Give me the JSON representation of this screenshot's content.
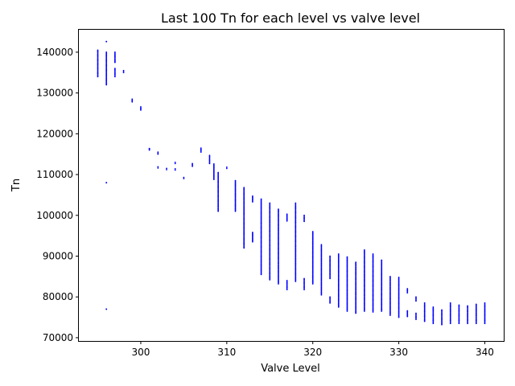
{
  "chart_data": {
    "type": "scatter",
    "title": "Last 100 Tn for each level vs valve level",
    "xlabel": "Valve Level",
    "ylabel": "Tn",
    "xlim": [
      292.8,
      342.2
    ],
    "ylim": [
      69200,
      145500
    ],
    "xticks": [
      300,
      310,
      320,
      330,
      340
    ],
    "yticks": [
      70000,
      80000,
      90000,
      100000,
      110000,
      120000,
      130000,
      140000
    ],
    "xtick_labels": [
      "300",
      "310",
      "320",
      "330",
      "340"
    ],
    "ytick_labels": [
      "70000",
      "80000",
      "90000",
      "100000",
      "110000",
      "120000",
      "130000",
      "140000"
    ],
    "grid": false,
    "marker_color": "#0000ff",
    "series": [
      {
        "ranges": [
          {
            "x": 295,
            "y_ranges": [
              [
                134000,
                140500
              ]
            ]
          },
          {
            "x": 296,
            "y_ranges": [
              [
                132000,
                140000
              ],
              [
                142600,
                142600
              ],
              [
                108000,
                108000
              ],
              [
                77000,
                77000
              ]
            ]
          },
          {
            "x": 297,
            "y_ranges": [
              [
                134000,
                136000
              ],
              [
                137500,
                140000
              ]
            ]
          },
          {
            "x": 298,
            "y_ranges": [
              [
                135000,
                135500
              ]
            ]
          },
          {
            "x": 299,
            "y_ranges": [
              [
                127800,
                128500
              ]
            ]
          },
          {
            "x": 300,
            "y_ranges": [
              [
                125800,
                126600
              ]
            ]
          },
          {
            "x": 301,
            "y_ranges": [
              [
                116000,
                116400
              ]
            ]
          },
          {
            "x": 302,
            "y_ranges": [
              [
                115000,
                115500
              ],
              [
                111600,
                111900
              ]
            ]
          },
          {
            "x": 303,
            "y_ranges": [
              [
                111200,
                111500
              ]
            ]
          },
          {
            "x": 304,
            "y_ranges": [
              [
                112700,
                113000
              ],
              [
                111100,
                111400
              ]
            ]
          },
          {
            "x": 305,
            "y_ranges": [
              [
                109000,
                109300
              ]
            ]
          },
          {
            "x": 306,
            "y_ranges": [
              [
                112000,
                112700
              ]
            ]
          },
          {
            "x": 307,
            "y_ranges": [
              [
                115500,
                116500
              ]
            ]
          },
          {
            "x": 308,
            "y_ranges": [
              [
                112700,
                114700
              ]
            ]
          },
          {
            "x": 308.5,
            "y_ranges": [
              [
                108800,
                112600
              ]
            ]
          },
          {
            "x": 309,
            "y_ranges": [
              [
                101000,
                110500
              ]
            ]
          },
          {
            "x": 310,
            "y_ranges": [
              [
                111500,
                111800
              ]
            ]
          },
          {
            "x": 311,
            "y_ranges": [
              [
                101000,
                108500
              ]
            ]
          },
          {
            "x": 312,
            "y_ranges": [
              [
                92000,
                106800
              ]
            ]
          },
          {
            "x": 313,
            "y_ranges": [
              [
                93500,
                95800
              ],
              [
                103300,
                104700
              ]
            ]
          },
          {
            "x": 314,
            "y_ranges": [
              [
                85500,
                104000
              ]
            ]
          },
          {
            "x": 315,
            "y_ranges": [
              [
                84200,
                103000
              ]
            ]
          },
          {
            "x": 316,
            "y_ranges": [
              [
                83200,
                101500
              ]
            ]
          },
          {
            "x": 317,
            "y_ranges": [
              [
                81800,
                84000
              ],
              [
                98600,
                100300
              ]
            ]
          },
          {
            "x": 318,
            "y_ranges": [
              [
                83800,
                103000
              ]
            ]
          },
          {
            "x": 319,
            "y_ranges": [
              [
                81800,
                84500
              ],
              [
                98500,
                100000
              ]
            ]
          },
          {
            "x": 320,
            "y_ranges": [
              [
                83200,
                96000
              ]
            ]
          },
          {
            "x": 321,
            "y_ranges": [
              [
                80500,
                92800
              ]
            ]
          },
          {
            "x": 322,
            "y_ranges": [
              [
                78500,
                80000
              ],
              [
                84500,
                90000
              ]
            ]
          },
          {
            "x": 323,
            "y_ranges": [
              [
                77500,
                90500
              ]
            ]
          },
          {
            "x": 324,
            "y_ranges": [
              [
                76500,
                89800
              ]
            ]
          },
          {
            "x": 325,
            "y_ranges": [
              [
                76000,
                88500
              ]
            ]
          },
          {
            "x": 326,
            "y_ranges": [
              [
                76500,
                91500
              ]
            ]
          },
          {
            "x": 327,
            "y_ranges": [
              [
                76300,
                90500
              ]
            ]
          },
          {
            "x": 328,
            "y_ranges": [
              [
                76500,
                89000
              ]
            ]
          },
          {
            "x": 329,
            "y_ranges": [
              [
                75500,
                85000
              ]
            ]
          },
          {
            "x": 330,
            "y_ranges": [
              [
                75000,
                84800
              ]
            ]
          },
          {
            "x": 331,
            "y_ranges": [
              [
                75200,
                76600
              ],
              [
                81000,
                82000
              ]
            ]
          },
          {
            "x": 332,
            "y_ranges": [
              [
                74500,
                76000
              ],
              [
                79000,
                80000
              ]
            ]
          },
          {
            "x": 333,
            "y_ranges": [
              [
                74000,
                78500
              ]
            ]
          },
          {
            "x": 334,
            "y_ranges": [
              [
                73500,
                77500
              ]
            ]
          },
          {
            "x": 335,
            "y_ranges": [
              [
                73200,
                76800
              ]
            ]
          },
          {
            "x": 336,
            "y_ranges": [
              [
                73500,
                78500
              ]
            ]
          },
          {
            "x": 337,
            "y_ranges": [
              [
                73500,
                78000
              ]
            ]
          },
          {
            "x": 338,
            "y_ranges": [
              [
                73500,
                77800
              ]
            ]
          },
          {
            "x": 339,
            "y_ranges": [
              [
                73500,
                78200
              ]
            ]
          },
          {
            "x": 340,
            "y_ranges": [
              [
                73500,
                78500
              ]
            ]
          }
        ]
      }
    ]
  }
}
